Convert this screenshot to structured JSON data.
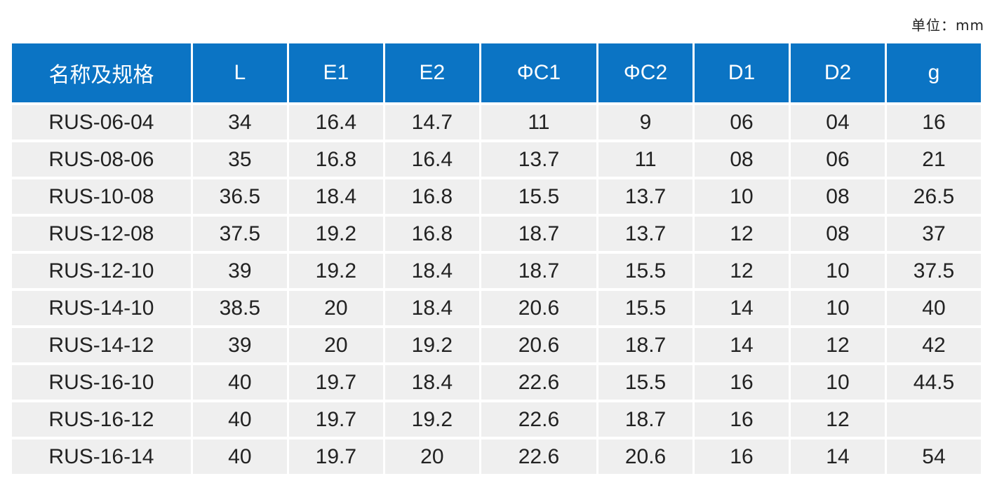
{
  "unit_label": "单位：mm",
  "table": {
    "headers": [
      "名称及规格",
      "L",
      "E1",
      "E2",
      "ΦC1",
      "ΦC2",
      "D1",
      "D2",
      "g"
    ],
    "rows": [
      [
        "RUS-06-04",
        "34",
        "16.4",
        "14.7",
        "11",
        "9",
        "06",
        "04",
        "16"
      ],
      [
        "RUS-08-06",
        "35",
        "16.8",
        "16.4",
        "13.7",
        "11",
        "08",
        "06",
        "21"
      ],
      [
        "RUS-10-08",
        "36.5",
        "18.4",
        "16.8",
        "15.5",
        "13.7",
        "10",
        "08",
        "26.5"
      ],
      [
        "RUS-12-08",
        "37.5",
        "19.2",
        "16.8",
        "18.7",
        "13.7",
        "12",
        "08",
        "37"
      ],
      [
        "RUS-12-10",
        "39",
        "19.2",
        "18.4",
        "18.7",
        "15.5",
        "12",
        "10",
        "37.5"
      ],
      [
        "RUS-14-10",
        "38.5",
        "20",
        "18.4",
        "20.6",
        "15.5",
        "14",
        "10",
        "40"
      ],
      [
        "RUS-14-12",
        "39",
        "20",
        "19.2",
        "20.6",
        "18.7",
        "14",
        "12",
        "42"
      ],
      [
        "RUS-16-10",
        "40",
        "19.7",
        "18.4",
        "22.6",
        "15.5",
        "16",
        "10",
        "44.5"
      ],
      [
        "RUS-16-12",
        "40",
        "19.7",
        "19.2",
        "22.6",
        "18.7",
        "16",
        "12",
        ""
      ],
      [
        "RUS-16-14",
        "40",
        "19.7",
        "20",
        "22.6",
        "20.6",
        "16",
        "14",
        "54"
      ]
    ]
  },
  "colors": {
    "header_bg": "#0b74c4",
    "header_text": "#ffffff",
    "cell_bg": "#efefef",
    "cell_text": "#222222"
  }
}
